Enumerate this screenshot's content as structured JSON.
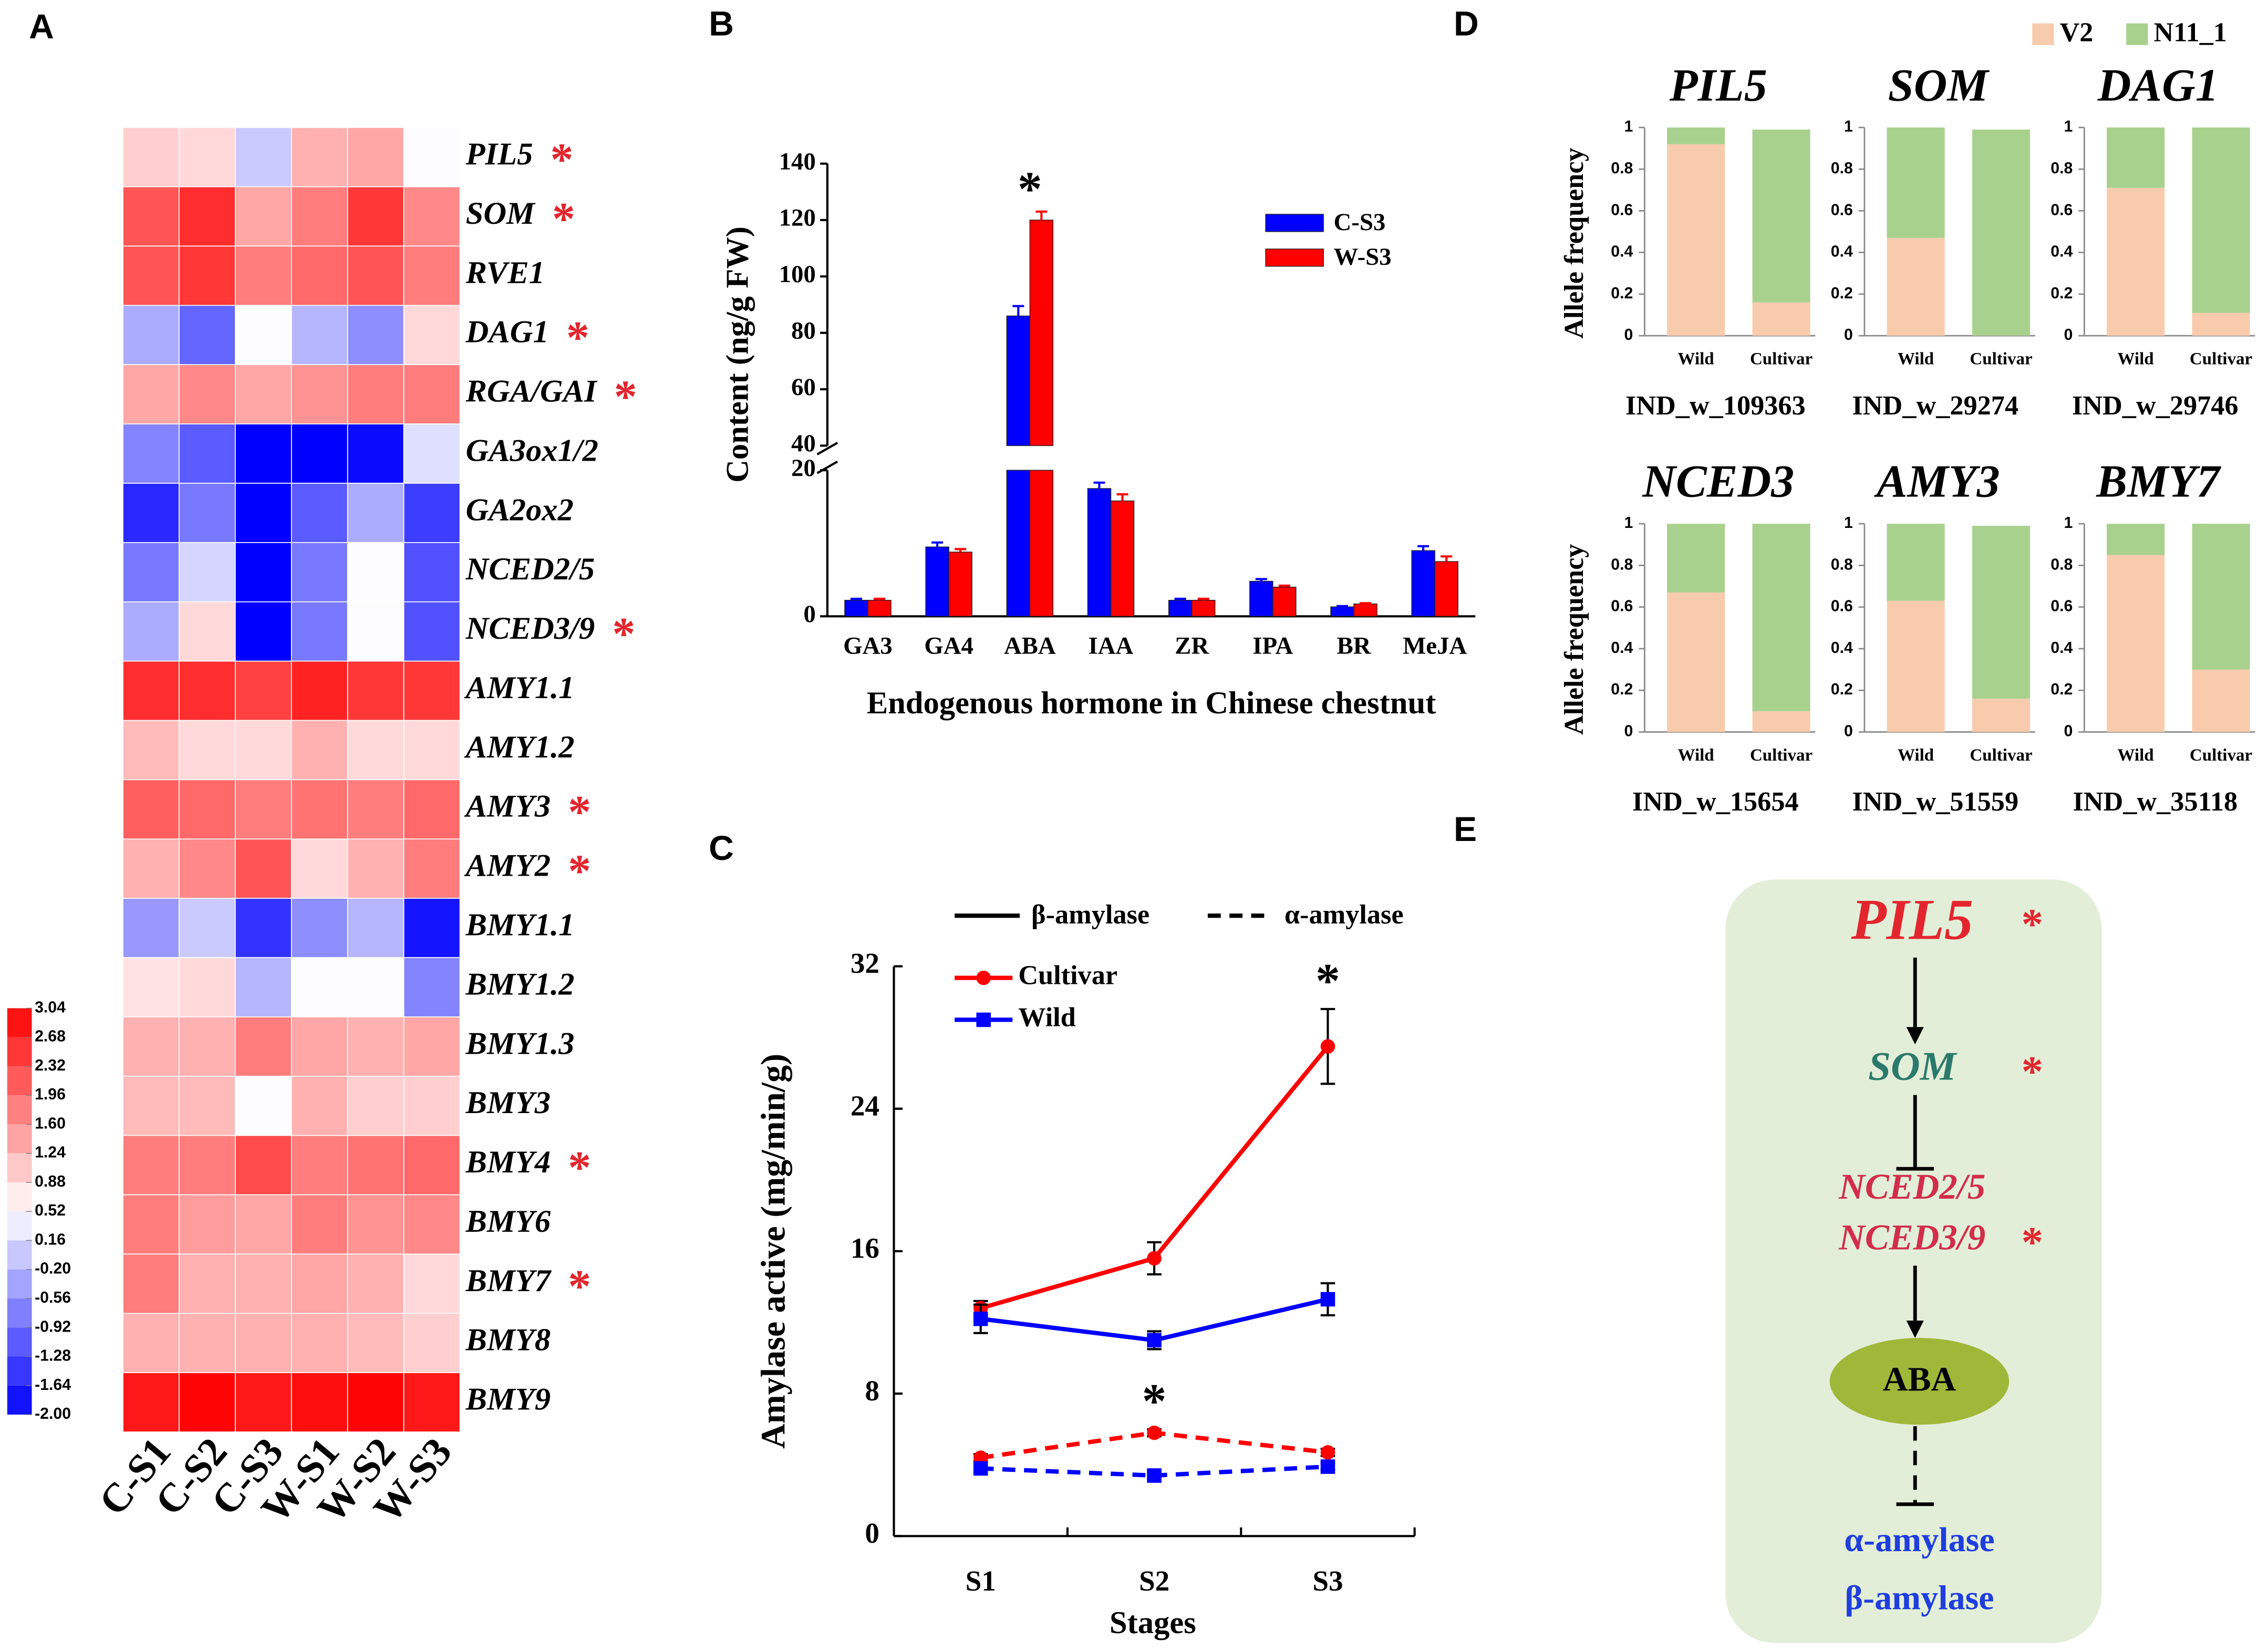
{
  "chart_data": [
    {
      "type": "heatmap",
      "panel": "A",
      "rows": [
        "PIL5",
        "SOM",
        "RVE1",
        "DAG1",
        "RGA/GAI",
        "GA3ox1/2",
        "GA2ox2",
        "NCED2/5",
        "NCED3/9",
        "AMY1.1",
        "AMY1.2",
        "AMY3",
        "AMY2",
        "BMY1.1",
        "BMY1.2",
        "BMY1.3",
        "BMY3",
        "BMY4",
        "BMY6",
        "BMY7",
        "BMY8",
        "BMY9"
      ],
      "row_marks": [
        "*",
        "*",
        null,
        "*",
        "*",
        null,
        null,
        null,
        "*",
        null,
        null,
        "*",
        "*",
        null,
        null,
        null,
        null,
        "*",
        null,
        "*",
        null,
        null
      ],
      "columns": [
        "C-S1",
        "C-S2",
        "C-S3",
        "W-S1",
        "W-S2",
        "W-S3"
      ],
      "values": [
        [
          1.0,
          0.9,
          0.0,
          1.3,
          1.4,
          0.5
        ],
        [
          2.2,
          2.6,
          1.4,
          1.8,
          2.5,
          1.7
        ],
        [
          2.2,
          2.5,
          1.8,
          2.0,
          2.2,
          1.8
        ],
        [
          -0.3,
          -1.0,
          0.5,
          -0.2,
          -0.6,
          0.9
        ],
        [
          1.4,
          1.7,
          1.4,
          1.6,
          1.8,
          1.8
        ],
        [
          -0.7,
          -1.1,
          -2.0,
          -2.0,
          -1.9,
          0.2
        ],
        [
          -1.6,
          -0.8,
          -2.0,
          -1.1,
          -0.3,
          -1.4
        ],
        [
          -0.8,
          0.1,
          -2.0,
          -0.8,
          0.5,
          -1.2
        ],
        [
          -0.3,
          0.9,
          -2.0,
          -0.8,
          0.5,
          -1.2
        ],
        [
          2.6,
          2.6,
          2.4,
          2.7,
          2.5,
          2.5
        ],
        [
          1.2,
          0.9,
          0.9,
          1.3,
          0.9,
          0.9
        ],
        [
          2.1,
          2.0,
          1.8,
          1.9,
          1.8,
          2.0
        ],
        [
          1.3,
          1.7,
          2.2,
          0.9,
          1.3,
          1.8
        ],
        [
          -0.5,
          0.0,
          -1.5,
          -0.6,
          -0.2,
          -1.8
        ],
        [
          0.8,
          0.9,
          -0.2,
          0.5,
          0.5,
          -0.7
        ],
        [
          1.3,
          1.3,
          1.8,
          1.4,
          1.3,
          1.4
        ],
        [
          1.2,
          1.2,
          0.5,
          1.3,
          1.0,
          1.0
        ],
        [
          1.8,
          1.8,
          2.3,
          1.8,
          1.9,
          2.0
        ],
        [
          1.8,
          1.5,
          1.4,
          1.8,
          1.6,
          1.7
        ],
        [
          1.8,
          1.3,
          1.3,
          1.4,
          1.3,
          0.9
        ],
        [
          1.3,
          1.3,
          1.3,
          1.3,
          1.2,
          1.0
        ],
        [
          2.8,
          3.0,
          2.8,
          2.9,
          3.0,
          2.8
        ]
      ],
      "zlim": [
        -2,
        3.04
      ],
      "colorscale": [
        "#0000ff",
        "#ffffff",
        "#ff0000"
      ],
      "zticks": [
        3.04,
        2.68,
        2.32,
        1.96,
        {
          "value": 1.6,
          "label": "1.60"
        },
        1.24,
        0.88,
        0.52,
        0.16,
        {
          "value": -0.2,
          "label": "-0.20"
        },
        -0.56,
        -0.92,
        -1.28,
        -1.64,
        {
          "value": -2,
          "label": "-2.00"
        }
      ]
    },
    {
      "type": "bar",
      "panel": "B",
      "ylabel": "Content (ng/g FW)",
      "xlabel": "Endogenous hormone in Chinese chestnut",
      "categories": [
        "GA3",
        "GA4",
        "ABA",
        "IAA",
        "ZR",
        "IPA",
        "BR",
        "MeJA"
      ],
      "series": [
        {
          "name": "C-S3",
          "color": "#0000ff",
          "values": [
            2.2,
            9.5,
            86,
            17.5,
            2.2,
            4.8,
            1.3,
            9.0
          ],
          "errors": [
            0.2,
            0.6,
            3.5,
            0.8,
            0.2,
            0.3,
            0.1,
            0.6
          ]
        },
        {
          "name": "W-S3",
          "color": "#ff0000",
          "values": [
            2.2,
            8.8,
            120,
            15.8,
            2.2,
            4.0,
            1.7,
            7.5
          ],
          "errors": [
            0.2,
            0.4,
            3.0,
            0.9,
            0.2,
            0.2,
            0.1,
            0.7
          ]
        }
      ],
      "annotations": [
        {
          "text": "*",
          "index": 2
        }
      ],
      "ylim": [
        0,
        140
      ],
      "ybreak": [
        20,
        40
      ],
      "yticks": [
        0,
        20,
        40,
        60,
        80,
        100,
        120,
        140
      ]
    },
    {
      "type": "line",
      "panel": "C",
      "ylabel": "Amylase active (mg/min/g)",
      "xlabel": "Stages",
      "categories": [
        "S1",
        "S2",
        "S3"
      ],
      "legend_lines": [
        {
          "name": "β-amylase",
          "dash": false
        },
        {
          "name": "α-amylase",
          "dash": true
        }
      ],
      "legend": [
        {
          "name": "Cultivar",
          "color": "#ff0000",
          "marker": "circle"
        },
        {
          "name": "Wild",
          "color": "#0000ff",
          "marker": "square"
        }
      ],
      "series": [
        {
          "color": "#ff0000",
          "marker": "circle",
          "dash": false,
          "values": [
            12.8,
            15.6,
            27.5
          ],
          "errors": [
            0.4,
            0.9,
            2.1
          ]
        },
        {
          "color": "#0000ff",
          "marker": "square",
          "dash": false,
          "values": [
            12.2,
            11.0,
            13.3
          ],
          "errors": [
            0.8,
            0.5,
            0.9
          ]
        },
        {
          "color": "#ff0000",
          "marker": "circle",
          "dash": true,
          "values": [
            4.4,
            5.8,
            4.7
          ],
          "errors": [
            0.2,
            0.2,
            0.2
          ]
        },
        {
          "color": "#0000ff",
          "marker": "square",
          "dash": true,
          "values": [
            3.8,
            3.4,
            3.9
          ],
          "errors": [
            0.2,
            0.2,
            0.2
          ]
        }
      ],
      "annotations": [
        {
          "text": "*",
          "series": 0,
          "index": 2
        },
        {
          "text": "*",
          "series": 2,
          "index": 1
        }
      ],
      "ylim": [
        0,
        32
      ],
      "yticks": [
        0,
        8,
        16,
        24,
        32
      ]
    },
    {
      "type": "stacked_bar_grid",
      "panel": "D",
      "ylabel": "Allele frequency",
      "categories": [
        "Wild",
        "Cultivar"
      ],
      "series": [
        {
          "name": "V2",
          "color": "#f8cbad"
        },
        {
          "name": "N11_1",
          "color": "#a9d18e"
        }
      ],
      "ylim": [
        0,
        1
      ],
      "yticks": [
        0,
        0.2,
        0.4,
        0.6,
        0.8,
        1
      ],
      "panels": [
        {
          "title": "PIL5",
          "xlabel": "IND_w_109363",
          "values": [
            [
              0.92,
              0.16
            ],
            [
              0.08,
              0.83
            ]
          ]
        },
        {
          "title": "SOM",
          "xlabel": "IND_w_29274",
          "values": [
            [
              0.47,
              0.0
            ],
            [
              0.53,
              0.99
            ]
          ]
        },
        {
          "title": "DAG1",
          "xlabel": "IND_w_29746",
          "values": [
            [
              0.71,
              0.11
            ],
            [
              0.29,
              0.89
            ]
          ]
        },
        {
          "title": "NCED3",
          "xlabel": "IND_w_15654",
          "values": [
            [
              0.67,
              0.1
            ],
            [
              0.33,
              0.9
            ]
          ]
        },
        {
          "title": "AMY3",
          "xlabel": "IND_w_51559",
          "values": [
            [
              0.63,
              0.16
            ],
            [
              0.37,
              0.83
            ]
          ]
        },
        {
          "title": "BMY7",
          "xlabel": "IND_w_35118",
          "values": [
            [
              0.85,
              0.3
            ],
            [
              0.15,
              0.7
            ]
          ]
        }
      ]
    }
  ],
  "diagram": {
    "panel": "E",
    "nodes": [
      {
        "label": "PIL5",
        "mark": "*"
      },
      {
        "label": "SOM",
        "mark": "*"
      },
      {
        "label": "NCED2/5"
      },
      {
        "label": "NCED3/9",
        "mark": "*"
      },
      {
        "label": "ABA"
      },
      {
        "label": "α-amylase"
      },
      {
        "label": "β-amylase"
      }
    ]
  }
}
